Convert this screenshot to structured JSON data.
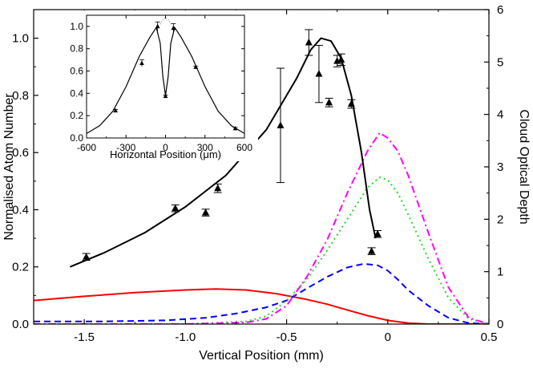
{
  "chart_data": [
    {
      "type": "line",
      "xlabel": "Vertical Position (mm)",
      "ylabel_left": "Normalised Atom Number",
      "ylabel_right": "Cloud Optical Depth",
      "xlim": [
        -1.75,
        0.5
      ],
      "ylim_left": [
        0,
        1.1
      ],
      "ylim_right": [
        0,
        6
      ],
      "x_ticks": [
        -1.5,
        -1.0,
        -0.5,
        0,
        0.5
      ],
      "x_tick_labels": [
        "-1.5",
        "-1.0",
        "-0.5",
        "0",
        "0.5"
      ],
      "y_left_ticks": [
        0.0,
        0.2,
        0.4,
        0.6,
        0.8,
        1.0
      ],
      "y_left_tick_labels": [
        "0.0",
        "0.2",
        "0.4",
        "0.6",
        "0.8",
        "1.0"
      ],
      "y_right_ticks": [
        0,
        1,
        2,
        3,
        4,
        5,
        6
      ],
      "y_right_tick_labels": [
        "0",
        "1",
        "2",
        "3",
        "4",
        "5",
        "6"
      ],
      "markers": {
        "x": [
          -1.49,
          -1.05,
          -0.9,
          -0.84,
          -0.53,
          -0.39,
          -0.34,
          -0.29,
          -0.25,
          -0.23,
          -0.18,
          -0.08,
          -0.05
        ],
        "y": [
          0.235,
          0.405,
          0.39,
          0.475,
          0.695,
          0.985,
          0.875,
          0.775,
          0.92,
          0.925,
          0.77,
          0.255,
          0.315
        ],
        "err": [
          0.012,
          0.012,
          0.012,
          0.015,
          0.2,
          0.045,
          0.1,
          0.015,
          0.02,
          0.02,
          0.015,
          0.012,
          0.012
        ]
      },
      "fit_curve": {
        "axis": "left",
        "color": "#000000",
        "x": [
          -1.57,
          -1.4,
          -1.2,
          -1.0,
          -0.8,
          -0.6,
          -0.45,
          -0.38,
          -0.33,
          -0.28,
          -0.23,
          -0.18,
          -0.13,
          -0.09,
          -0.06
        ],
        "y": [
          0.2,
          0.25,
          0.32,
          0.41,
          0.52,
          0.68,
          0.86,
          0.96,
          1.0,
          0.99,
          0.93,
          0.8,
          0.6,
          0.4,
          0.3
        ]
      },
      "series": [
        {
          "axis": "right",
          "color": "#ff0000",
          "dash": "solid",
          "x": [
            -1.75,
            -1.5,
            -1.25,
            -1.0,
            -0.85,
            -0.7,
            -0.55,
            -0.4,
            -0.3,
            -0.2,
            -0.1,
            0.0,
            0.1,
            0.2,
            0.3,
            0.4,
            0.5
          ],
          "y": [
            0.45,
            0.53,
            0.6,
            0.65,
            0.67,
            0.65,
            0.58,
            0.47,
            0.38,
            0.27,
            0.16,
            0.07,
            0.02,
            0.0,
            0.0,
            0.0,
            0.0
          ]
        },
        {
          "axis": "right",
          "color": "#0000ff",
          "dash": "dashed",
          "x": [
            -1.75,
            -1.4,
            -1.1,
            -0.9,
            -0.75,
            -0.6,
            -0.5,
            -0.4,
            -0.3,
            -0.2,
            -0.12,
            -0.05,
            0.0,
            0.05,
            0.1,
            0.2,
            0.3,
            0.4,
            0.5
          ],
          "y": [
            0.05,
            0.05,
            0.07,
            0.12,
            0.2,
            0.32,
            0.45,
            0.68,
            0.9,
            1.08,
            1.15,
            1.12,
            1.02,
            0.85,
            0.65,
            0.35,
            0.12,
            0.02,
            0.0
          ]
        },
        {
          "axis": "right",
          "color": "#22dd22",
          "dash": "dotted",
          "x": [
            -1.75,
            -1.0,
            -0.7,
            -0.6,
            -0.5,
            -0.4,
            -0.3,
            -0.2,
            -0.1,
            -0.04,
            0.0,
            0.05,
            0.1,
            0.2,
            0.3,
            0.4,
            0.5
          ],
          "y": [
            0.0,
            0.0,
            0.05,
            0.15,
            0.45,
            0.85,
            1.4,
            2.0,
            2.6,
            2.8,
            2.75,
            2.5,
            2.1,
            1.25,
            0.5,
            0.1,
            0.0
          ]
        },
        {
          "axis": "right",
          "color": "#ff00ff",
          "dash": "dashdot",
          "x": [
            -1.75,
            -1.0,
            -0.7,
            -0.6,
            -0.5,
            -0.4,
            -0.3,
            -0.2,
            -0.1,
            -0.04,
            0.0,
            0.05,
            0.1,
            0.2,
            0.3,
            0.4,
            0.5
          ],
          "y": [
            0.0,
            0.0,
            0.03,
            0.1,
            0.35,
            0.9,
            1.6,
            2.5,
            3.3,
            3.65,
            3.55,
            3.3,
            2.85,
            1.75,
            0.7,
            0.12,
            0.0
          ]
        }
      ]
    },
    {
      "type": "line",
      "xlabel": "Horizontal Position (μm)",
      "xlim": [
        -600,
        600
      ],
      "ylim": [
        0,
        1.1
      ],
      "x_ticks": [
        -600,
        -300,
        0,
        300,
        600
      ],
      "x_tick_labels": [
        "-600",
        "-300",
        "0",
        "300",
        "600"
      ],
      "y_ticks": [
        0.0,
        0.2,
        0.4,
        0.6,
        0.8,
        1.0
      ],
      "y_tick_labels": [
        "0.0",
        "0.2",
        "0.4",
        "0.6",
        "0.8",
        "1.0"
      ],
      "markers": {
        "x": [
          -380,
          -180,
          -60,
          0,
          60,
          230,
          530
        ],
        "y": [
          0.245,
          0.67,
          1.0,
          0.375,
          0.985,
          0.635,
          0.085
        ],
        "err": [
          0.01,
          0.03,
          0.04,
          0.01,
          0.04,
          0.01,
          0.01
        ]
      },
      "fit_curve": {
        "color": "#000000",
        "x": [
          -600,
          -500,
          -400,
          -300,
          -200,
          -120,
          -70,
          -40,
          -20,
          0,
          20,
          40,
          70,
          120,
          200,
          300,
          400,
          500,
          600
        ],
        "y": [
          0.04,
          0.11,
          0.24,
          0.46,
          0.73,
          0.9,
          0.99,
          0.85,
          0.55,
          0.38,
          0.55,
          0.85,
          0.99,
          0.9,
          0.73,
          0.46,
          0.24,
          0.11,
          0.04
        ]
      },
      "dotted_cap": {
        "color": "#666666",
        "x": [
          -40,
          -20,
          0,
          20,
          40
        ],
        "y": [
          1.02,
          1.06,
          1.08,
          1.06,
          1.02
        ]
      }
    }
  ]
}
